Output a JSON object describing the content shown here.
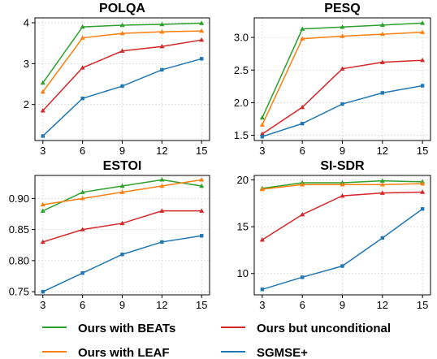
{
  "colors": {
    "Ours with BEATs": "#2ca02c",
    "Ours with LEAF": "#ff7f0e",
    "Ours but unconditional": "#d62728",
    "SGMSE+": "#1f77b4"
  },
  "legend": [
    {
      "label": "Ours with BEATs"
    },
    {
      "label": "Ours but unconditional"
    },
    {
      "label": "Ours with LEAF"
    },
    {
      "label": "SGMSE+"
    }
  ],
  "chart_data": [
    {
      "type": "line",
      "title": "POLQA",
      "xlabel": "",
      "ylabel": "",
      "x": [
        3,
        6,
        9,
        12,
        15
      ],
      "xticks": [
        "3",
        "6",
        "9",
        "12",
        "15"
      ],
      "xlim": [
        2.4,
        15.6
      ],
      "ylim": [
        1.12,
        4.12
      ],
      "yticks": [
        2,
        3,
        4
      ],
      "ytick_labels": [
        "2",
        "3",
        "4"
      ],
      "grid": true,
      "series": [
        {
          "name": "Ours with BEATs",
          "values": [
            2.53,
            3.9,
            3.94,
            3.96,
            3.99
          ]
        },
        {
          "name": "Ours with LEAF",
          "values": [
            2.31,
            3.63,
            3.74,
            3.78,
            3.8
          ]
        },
        {
          "name": "Ours but unconditional",
          "values": [
            1.85,
            2.9,
            3.31,
            3.42,
            3.58
          ]
        },
        {
          "name": "SGMSE+",
          "values": [
            1.23,
            2.15,
            2.45,
            2.85,
            3.12
          ]
        }
      ]
    },
    {
      "type": "line",
      "title": "PESQ",
      "xlabel": "",
      "ylabel": "",
      "x": [
        3,
        6,
        9,
        12,
        15
      ],
      "xticks": [
        "3",
        "6",
        "9",
        "12",
        "15"
      ],
      "xlim": [
        2.4,
        15.6
      ],
      "ylim": [
        1.42,
        3.3
      ],
      "yticks": [
        1.5,
        2.0,
        2.5,
        3.0
      ],
      "ytick_labels": [
        "1.5",
        "2.0",
        "2.5",
        "3.0"
      ],
      "grid": true,
      "series": [
        {
          "name": "Ours with BEATs",
          "values": [
            1.77,
            3.13,
            3.16,
            3.19,
            3.22
          ]
        },
        {
          "name": "Ours with LEAF",
          "values": [
            1.66,
            2.98,
            3.02,
            3.05,
            3.08
          ]
        },
        {
          "name": "Ours but unconditional",
          "values": [
            1.52,
            1.93,
            2.52,
            2.62,
            2.65
          ]
        },
        {
          "name": "SGMSE+",
          "values": [
            1.48,
            1.68,
            1.98,
            2.15,
            2.26
          ]
        }
      ]
    },
    {
      "type": "line",
      "title": "ESTOI",
      "xlabel": "",
      "ylabel": "",
      "x": [
        3,
        6,
        9,
        12,
        15
      ],
      "xticks": [
        "3",
        "6",
        "9",
        "12",
        "15"
      ],
      "xlim": [
        2.4,
        15.6
      ],
      "ylim": [
        0.745,
        0.937
      ],
      "yticks": [
        0.75,
        0.8,
        0.85,
        0.9
      ],
      "ytick_labels": [
        "0.75",
        "0.80",
        "0.85",
        "0.90"
      ],
      "grid": true,
      "series": [
        {
          "name": "Ours with BEATs",
          "values": [
            0.88,
            0.91,
            0.92,
            0.93,
            0.92
          ]
        },
        {
          "name": "Ours with LEAF",
          "values": [
            0.89,
            0.9,
            0.91,
            0.92,
            0.93
          ]
        },
        {
          "name": "Ours but unconditional",
          "values": [
            0.83,
            0.85,
            0.86,
            0.88,
            0.88
          ]
        },
        {
          "name": "SGMSE+",
          "values": [
            0.75,
            0.78,
            0.81,
            0.83,
            0.84
          ]
        }
      ]
    },
    {
      "type": "line",
      "title": "SI-SDR",
      "xlabel": "",
      "ylabel": "",
      "x": [
        3,
        6,
        9,
        12,
        15
      ],
      "xticks": [
        "3",
        "6",
        "9",
        "12",
        "15"
      ],
      "xlim": [
        2.4,
        15.6
      ],
      "ylim": [
        7.72,
        20.48
      ],
      "yticks": [
        10,
        15,
        20
      ],
      "ytick_labels": [
        "10",
        "15",
        "20"
      ],
      "grid": true,
      "series": [
        {
          "name": "Ours with BEATs",
          "values": [
            19.1,
            19.7,
            19.7,
            19.9,
            19.8
          ]
        },
        {
          "name": "Ours with LEAF",
          "values": [
            19.0,
            19.5,
            19.5,
            19.5,
            19.6
          ]
        },
        {
          "name": "Ours but unconditional",
          "values": [
            13.6,
            16.3,
            18.3,
            18.6,
            18.7
          ]
        },
        {
          "name": "SGMSE+",
          "values": [
            8.3,
            9.6,
            10.8,
            13.8,
            16.9
          ]
        }
      ]
    }
  ]
}
